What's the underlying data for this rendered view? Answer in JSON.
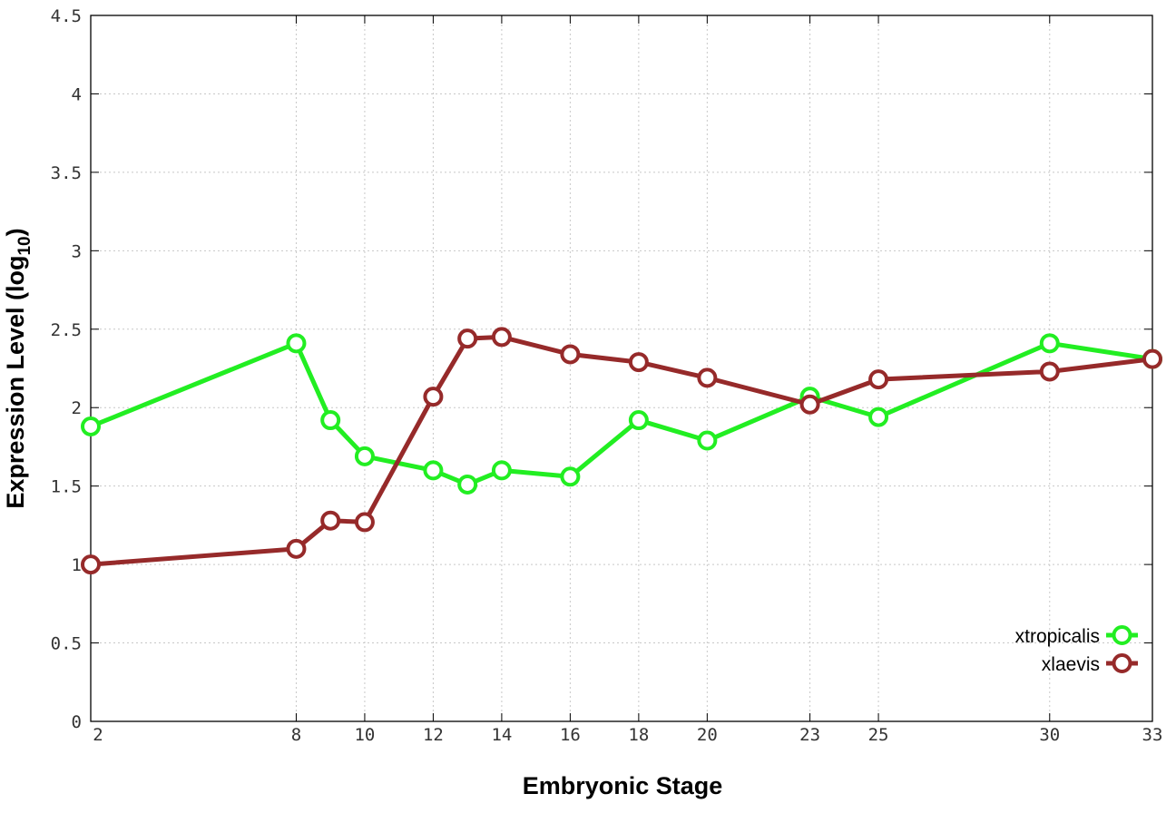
{
  "chart_data": {
    "type": "line",
    "title": "",
    "xlabel": "Embryonic Stage",
    "ylabel": "Expression Level (log",
    "ylabel_sub": "10",
    "ylabel_close": ")",
    "x_ticks": [
      2,
      8,
      10,
      12,
      14,
      16,
      18,
      20,
      23,
      25,
      30,
      33
    ],
    "y_ticks": [
      "0",
      "0.5",
      "1",
      "1.5",
      "2",
      "2.5",
      "3",
      "3.5",
      "4",
      "4.5"
    ],
    "xlim": [
      2,
      33
    ],
    "ylim": [
      0,
      4.5
    ],
    "grid": true,
    "legend_position": "bottom-right",
    "x": [
      2,
      8,
      9,
      10,
      12,
      13,
      14,
      16,
      18,
      20,
      23,
      25,
      30,
      33
    ],
    "series": [
      {
        "name": "xtropicalis",
        "color": "#22ee22",
        "values": [
          1.88,
          2.41,
          1.92,
          1.69,
          1.6,
          1.51,
          1.6,
          1.56,
          1.92,
          1.79,
          2.07,
          1.94,
          2.41,
          2.31
        ]
      },
      {
        "name": "xlaevis",
        "color": "#962a2a",
        "values": [
          1.0,
          1.1,
          1.28,
          1.27,
          2.07,
          2.44,
          2.45,
          2.34,
          2.29,
          2.19,
          2.02,
          2.18,
          2.23,
          2.31
        ]
      }
    ]
  }
}
